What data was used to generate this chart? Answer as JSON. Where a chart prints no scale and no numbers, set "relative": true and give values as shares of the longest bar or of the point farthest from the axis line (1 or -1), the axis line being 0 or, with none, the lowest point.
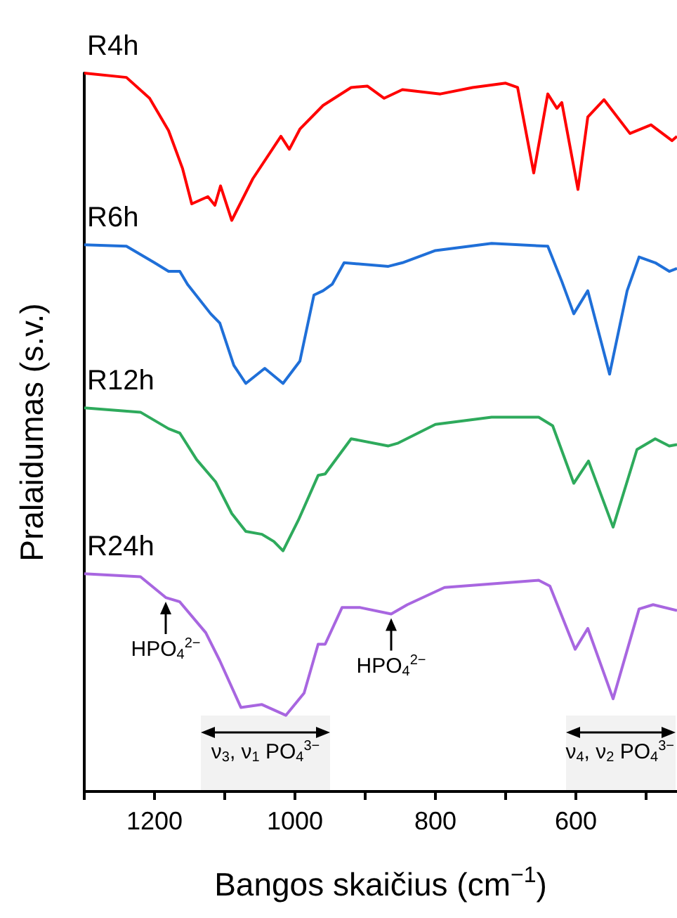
{
  "chart_data": {
    "type": "line",
    "relative": true,
    "xlabel": "Bangos skaičius (cm$^{−1}$)",
    "ylabel": "Pralaidumas (s.v.)",
    "xlim": [
      1300,
      456
    ],
    "xticks": [
      {
        "value": 1300,
        "label": null
      },
      1200,
      {
        "value": 1100,
        "label": null
      },
      1000,
      {
        "value": 900,
        "label": null
      },
      800,
      {
        "value": 700,
        "label": null
      },
      600,
      {
        "value": 500,
        "label": null
      }
    ],
    "legend": false,
    "grid": false,
    "series": [
      {
        "name": "R4h",
        "color": "#ff0000",
        "x": [
          1300,
          1240,
          1207,
          1180,
          1160,
          1147,
          1124,
          1114,
          1106,
          1090,
          1060,
          1020,
          1008,
          993,
          960,
          920,
          897,
          873,
          847,
          793,
          747,
          700,
          683,
          660,
          640,
          627,
          620,
          597,
          583,
          560,
          523,
          493,
          463,
          456
        ],
        "values": [
          1.0,
          0.994,
          0.965,
          0.92,
          0.867,
          0.818,
          0.828,
          0.816,
          0.843,
          0.795,
          0.853,
          0.912,
          0.894,
          0.922,
          0.955,
          0.98,
          0.982,
          0.965,
          0.977,
          0.971,
          0.98,
          0.986,
          0.98,
          0.861,
          0.971,
          0.951,
          0.959,
          0.838,
          0.939,
          0.963,
          0.916,
          0.928,
          0.906,
          0.912
        ]
      },
      {
        "name": "R6h",
        "color": "#1f6fd8",
        "x": [
          1300,
          1240,
          1200,
          1180,
          1164,
          1153,
          1120,
          1107,
          1087,
          1070,
          1043,
          1017,
          993,
          973,
          960,
          947,
          930,
          867,
          847,
          800,
          720,
          640,
          620,
          603,
          583,
          552,
          527,
          510,
          487,
          467,
          456
        ],
        "values": [
          0.761,
          0.759,
          0.736,
          0.724,
          0.724,
          0.706,
          0.665,
          0.652,
          0.593,
          0.568,
          0.589,
          0.568,
          0.599,
          0.691,
          0.697,
          0.706,
          0.736,
          0.731,
          0.736,
          0.753,
          0.763,
          0.759,
          0.71,
          0.665,
          0.697,
          0.581,
          0.697,
          0.744,
          0.736,
          0.724,
          0.728
        ]
      },
      {
        "name": "R12h",
        "color": "#2eaa5c",
        "x": [
          1300,
          1220,
          1180,
          1164,
          1140,
          1113,
          1090,
          1070,
          1047,
          1030,
          1017,
          995,
          967,
          957,
          920,
          867,
          853,
          800,
          720,
          653,
          633,
          603,
          582,
          547,
          513,
          487,
          467,
          456
        ],
        "values": [
          0.534,
          0.528,
          0.505,
          0.499,
          0.462,
          0.431,
          0.387,
          0.362,
          0.358,
          0.348,
          0.335,
          0.378,
          0.44,
          0.442,
          0.491,
          0.481,
          0.485,
          0.511,
          0.521,
          0.521,
          0.509,
          0.429,
          0.46,
          0.368,
          0.476,
          0.491,
          0.481,
          0.483
        ]
      },
      {
        "name": "R24h",
        "color": "#a866e0",
        "x": [
          1300,
          1220,
          1184,
          1164,
          1127,
          1107,
          1077,
          1047,
          1013,
          987,
          967,
          957,
          933,
          907,
          863,
          840,
          787,
          653,
          637,
          601,
          583,
          547,
          510,
          490,
          456
        ],
        "values": [
          0.303,
          0.299,
          0.27,
          0.264,
          0.221,
          0.182,
          0.117,
          0.121,
          0.106,
          0.137,
          0.205,
          0.205,
          0.256,
          0.256,
          0.247,
          0.26,
          0.284,
          0.294,
          0.286,
          0.198,
          0.227,
          0.129,
          0.254,
          0.26,
          0.252
        ]
      }
    ],
    "annotations": [
      {
        "text": "HPO$_{4}$$^{2−}$",
        "x": 1184,
        "y": 0.27
      },
      {
        "text": "HPO$_{4}$$^{2−}$",
        "x": 863,
        "y": 0.247
      }
    ],
    "bands": [
      {
        "axis": "x",
        "from": 1134,
        "to": 950,
        "label": "ν$_{3}$, ν$_{1}$ PO$_{4}$$^{3−}$"
      },
      {
        "axis": "x",
        "from": 614,
        "to": 456,
        "label": "ν$_{4}$, ν$_{2}$ PO$_{4}$$^{3−}$"
      }
    ]
  }
}
